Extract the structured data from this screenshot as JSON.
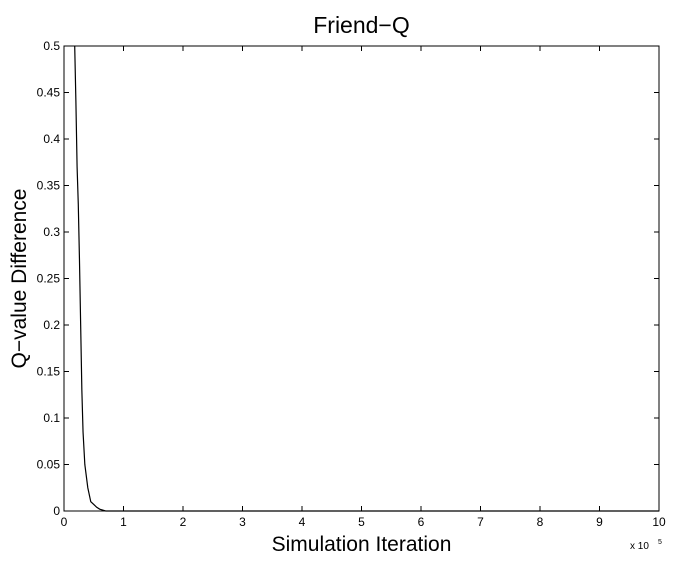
{
  "chart_data": {
    "type": "line",
    "title": "Friend−Q",
    "xlabel": "Simulation Iteration",
    "ylabel": "Q−value Difference",
    "x_multiplier": {
      "base": "x 10",
      "exponent": "5"
    },
    "xlim": [
      0,
      10
    ],
    "ylim": [
      0,
      0.5
    ],
    "xticks": [
      0,
      1,
      2,
      3,
      4,
      5,
      6,
      7,
      8,
      9,
      10
    ],
    "yticks": [
      0,
      0.05,
      0.1,
      0.15,
      0.2,
      0.25,
      0.3,
      0.35,
      0.4,
      0.45,
      0.5
    ],
    "grid": false,
    "series": [
      {
        "color": "#000000",
        "x": [
          0.18,
          0.2,
          0.22,
          0.24,
          0.26,
          0.28,
          0.3,
          0.32,
          0.35,
          0.4,
          0.45,
          0.5,
          0.55,
          0.6,
          0.65,
          0.7,
          0.8,
          1.0,
          2.0,
          4.0,
          6.0,
          8.0,
          10.0
        ],
        "y": [
          0.5,
          0.44,
          0.37,
          0.33,
          0.27,
          0.2,
          0.13,
          0.085,
          0.05,
          0.025,
          0.01,
          0.007,
          0.004,
          0.002,
          0.001,
          0.0,
          0.0,
          0.0,
          0.0,
          0.0,
          0.0,
          0.0,
          0.0
        ]
      }
    ]
  }
}
